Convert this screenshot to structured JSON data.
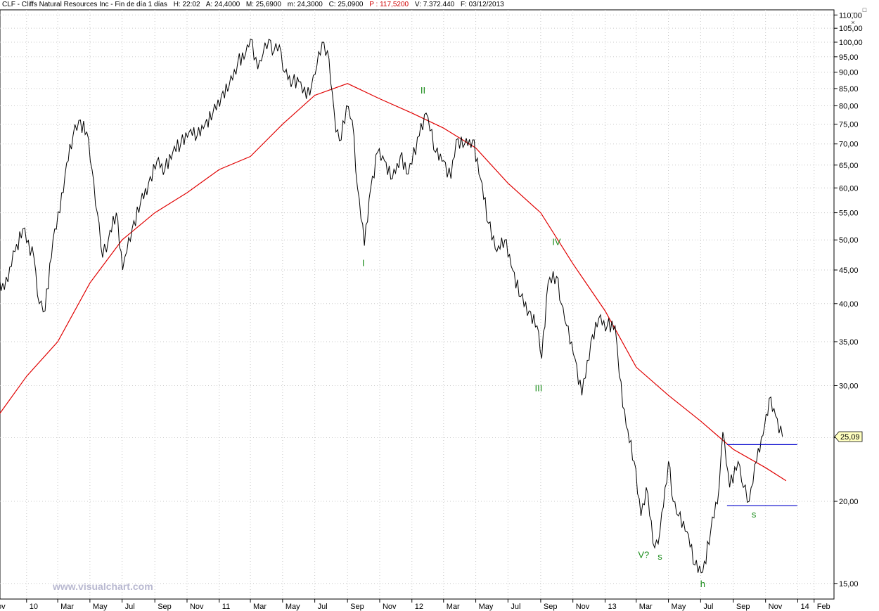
{
  "header": {
    "symbol_title": "CLF - Cliffs Natural Resources Inc - Fin de día 1 días",
    "hour": "H: 22:02",
    "open": "A: 24,4000",
    "high": "M: 25,6900",
    "low": "m: 24,3000",
    "close": "C: 25,0900",
    "p": "P : 117,5200",
    "volume": "V: 7.372.440",
    "date": "F: 03/12/2013"
  },
  "window_buttons": [
    "_",
    "□",
    "×"
  ],
  "watermark": "www.visualchart.com",
  "colors": {
    "price": "#000000",
    "ma": "#e00000",
    "wave_label": "#1a8c1a",
    "level_line": "#0000cc",
    "price_tag_bg": "#ffffc0"
  },
  "chart_data": {
    "type": "line",
    "y_scale": "log",
    "ylim": [
      14.2,
      112
    ],
    "yticks": [
      "15,00",
      "20,00",
      "25,00",
      "30,00",
      "35,00",
      "40,00",
      "45,00",
      "50,00",
      "55,00",
      "60,00",
      "65,00",
      "70,00",
      "75,00",
      "80,00",
      "85,00",
      "90,00",
      "95,00",
      "100,00",
      "105,00",
      "110,00"
    ],
    "ytick_values": [
      15,
      20,
      25,
      30,
      35,
      40,
      45,
      50,
      55,
      60,
      65,
      70,
      75,
      80,
      85,
      90,
      95,
      100,
      105,
      110
    ],
    "x_range": [
      "2009-11-01",
      "2014-02-28"
    ],
    "xticks": [
      {
        "date": "2009-11-01",
        "label": "ov"
      },
      {
        "date": "2010-01-01",
        "label": "10"
      },
      {
        "date": "2010-03-01",
        "label": "Mar"
      },
      {
        "date": "2010-05-01",
        "label": "May"
      },
      {
        "date": "2010-07-01",
        "label": "Jul"
      },
      {
        "date": "2010-09-01",
        "label": "Sep"
      },
      {
        "date": "2010-11-01",
        "label": "Nov"
      },
      {
        "date": "2011-01-01",
        "label": "11"
      },
      {
        "date": "2011-03-01",
        "label": "Mar"
      },
      {
        "date": "2011-05-01",
        "label": "May"
      },
      {
        "date": "2011-07-01",
        "label": "Jul"
      },
      {
        "date": "2011-09-01",
        "label": "Sep"
      },
      {
        "date": "2011-11-01",
        "label": "Nov"
      },
      {
        "date": "2012-01-01",
        "label": "12"
      },
      {
        "date": "2012-03-01",
        "label": "Mar"
      },
      {
        "date": "2012-05-01",
        "label": "May"
      },
      {
        "date": "2012-07-01",
        "label": "Jul"
      },
      {
        "date": "2012-09-01",
        "label": "Sep"
      },
      {
        "date": "2012-11-01",
        "label": "Nov"
      },
      {
        "date": "2013-01-01",
        "label": "13"
      },
      {
        "date": "2013-03-01",
        "label": "Mar"
      },
      {
        "date": "2013-05-01",
        "label": "May"
      },
      {
        "date": "2013-07-01",
        "label": "Jul"
      },
      {
        "date": "2013-09-01",
        "label": "Sep"
      },
      {
        "date": "2013-11-01",
        "label": "Nov"
      },
      {
        "date": "2014-01-01",
        "label": "14"
      },
      {
        "date": "2014-02-01",
        "label": "Feb"
      }
    ],
    "series": [
      {
        "key": "price",
        "points": [
          [
            "2009-11-01",
            44
          ],
          [
            "2009-11-20",
            42
          ],
          [
            "2009-12-10",
            48
          ],
          [
            "2009-12-25",
            52
          ],
          [
            "2010-01-15",
            47
          ],
          [
            "2010-01-25",
            40
          ],
          [
            "2010-02-05",
            39
          ],
          [
            "2010-02-20",
            50
          ],
          [
            "2010-03-05",
            55
          ],
          [
            "2010-03-15",
            63
          ],
          [
            "2010-03-30",
            72
          ],
          [
            "2010-04-10",
            76
          ],
          [
            "2010-04-25",
            73
          ],
          [
            "2010-05-05",
            64
          ],
          [
            "2010-05-15",
            55
          ],
          [
            "2010-05-25",
            47
          ],
          [
            "2010-06-05",
            50
          ],
          [
            "2010-06-20",
            55
          ],
          [
            "2010-07-02",
            45
          ],
          [
            "2010-07-10",
            48
          ],
          [
            "2010-07-20",
            52
          ],
          [
            "2010-08-05",
            57
          ],
          [
            "2010-08-20",
            61
          ],
          [
            "2010-09-05",
            66
          ],
          [
            "2010-09-20",
            64
          ],
          [
            "2010-10-05",
            68
          ],
          [
            "2010-10-20",
            70
          ],
          [
            "2010-11-05",
            73
          ],
          [
            "2010-11-20",
            72
          ],
          [
            "2010-12-05",
            75
          ],
          [
            "2010-12-20",
            78
          ],
          [
            "2011-01-05",
            83
          ],
          [
            "2011-01-20",
            86
          ],
          [
            "2011-02-05",
            93
          ],
          [
            "2011-02-20",
            96
          ],
          [
            "2011-03-01",
            101
          ],
          [
            "2011-03-15",
            91
          ],
          [
            "2011-03-25",
            96
          ],
          [
            "2011-04-05",
            101
          ],
          [
            "2011-04-15",
            97
          ],
          [
            "2011-04-25",
            99
          ],
          [
            "2011-05-05",
            90
          ],
          [
            "2011-05-20",
            87
          ],
          [
            "2011-06-01",
            87
          ],
          [
            "2011-06-15",
            82
          ],
          [
            "2011-06-25",
            86
          ],
          [
            "2011-07-05",
            92
          ],
          [
            "2011-07-15",
            100
          ],
          [
            "2011-07-25",
            97
          ],
          [
            "2011-08-03",
            84
          ],
          [
            "2011-08-10",
            73
          ],
          [
            "2011-08-20",
            71
          ],
          [
            "2011-08-30",
            80
          ],
          [
            "2011-09-10",
            76
          ],
          [
            "2011-09-20",
            60
          ],
          [
            "2011-10-03",
            49
          ],
          [
            "2011-10-15",
            60
          ],
          [
            "2011-10-28",
            68
          ],
          [
            "2011-11-10",
            66
          ],
          [
            "2011-11-25",
            62
          ],
          [
            "2011-12-10",
            67
          ],
          [
            "2011-12-25",
            63
          ],
          [
            "2012-01-15",
            72
          ],
          [
            "2012-01-28",
            78
          ],
          [
            "2012-02-15",
            68
          ],
          [
            "2012-03-01",
            66
          ],
          [
            "2012-03-15",
            62
          ],
          [
            "2012-03-25",
            71
          ],
          [
            "2012-04-10",
            70
          ],
          [
            "2012-04-25",
            71
          ],
          [
            "2012-05-10",
            62
          ],
          [
            "2012-05-25",
            53
          ],
          [
            "2012-06-10",
            48
          ],
          [
            "2012-06-25",
            50
          ],
          [
            "2012-07-10",
            45
          ],
          [
            "2012-07-25",
            41
          ],
          [
            "2012-08-10",
            39
          ],
          [
            "2012-08-25",
            37
          ],
          [
            "2012-09-03",
            33
          ],
          [
            "2012-09-15",
            43
          ],
          [
            "2012-10-01",
            44
          ],
          [
            "2012-10-10",
            40
          ],
          [
            "2012-10-20",
            37
          ],
          [
            "2012-11-05",
            33
          ],
          [
            "2012-11-18",
            29
          ],
          [
            "2012-12-05",
            35
          ],
          [
            "2012-12-20",
            38
          ],
          [
            "2013-01-05",
            37
          ],
          [
            "2013-01-20",
            37
          ],
          [
            "2013-01-28",
            31
          ],
          [
            "2013-02-10",
            26
          ],
          [
            "2013-02-25",
            23
          ],
          [
            "2013-03-10",
            19
          ],
          [
            "2013-03-20",
            21
          ],
          [
            "2013-04-05",
            17
          ],
          [
            "2013-04-15",
            18
          ],
          [
            "2013-05-01",
            23
          ],
          [
            "2013-05-10",
            20
          ],
          [
            "2013-05-20",
            19
          ],
          [
            "2013-06-05",
            18
          ],
          [
            "2013-06-20",
            16
          ],
          [
            "2013-07-05",
            15.6
          ],
          [
            "2013-07-20",
            18
          ],
          [
            "2013-08-05",
            21
          ],
          [
            "2013-08-12",
            25.5
          ],
          [
            "2013-08-25",
            21
          ],
          [
            "2013-09-10",
            23
          ],
          [
            "2013-09-20",
            21
          ],
          [
            "2013-10-01",
            20
          ],
          [
            "2013-10-15",
            23
          ],
          [
            "2013-10-30",
            26
          ],
          [
            "2013-11-08",
            28.7
          ],
          [
            "2013-11-20",
            27
          ],
          [
            "2013-12-03",
            25.09
          ]
        ]
      },
      {
        "key": "moving_average",
        "points": [
          [
            "2009-11-01",
            26.5
          ],
          [
            "2010-01-01",
            31
          ],
          [
            "2010-03-01",
            35
          ],
          [
            "2010-05-01",
            43
          ],
          [
            "2010-07-01",
            50
          ],
          [
            "2010-09-01",
            55
          ],
          [
            "2010-11-01",
            59
          ],
          [
            "2011-01-01",
            64
          ],
          [
            "2011-03-01",
            67
          ],
          [
            "2011-05-01",
            75
          ],
          [
            "2011-07-01",
            83
          ],
          [
            "2011-09-01",
            86.5
          ],
          [
            "2011-11-01",
            82
          ],
          [
            "2012-01-01",
            78
          ],
          [
            "2012-03-01",
            74
          ],
          [
            "2012-05-01",
            69
          ],
          [
            "2012-07-01",
            61
          ],
          [
            "2012-09-01",
            55
          ],
          [
            "2012-11-01",
            46
          ],
          [
            "2013-01-01",
            39
          ],
          [
            "2013-03-01",
            32
          ],
          [
            "2013-05-01",
            29
          ],
          [
            "2013-07-01",
            26.5
          ],
          [
            "2013-09-01",
            24
          ],
          [
            "2013-11-01",
            22.5
          ],
          [
            "2013-12-10",
            21.5
          ]
        ]
      }
    ],
    "last_price_label": "25,09",
    "last_price": 25.09,
    "wave_labels": [
      {
        "text": "I",
        "date": "2011-10-01",
        "value": 45.6
      },
      {
        "text": "II",
        "date": "2012-01-22",
        "value": 83.5
      },
      {
        "text": "III",
        "date": "2012-08-28",
        "value": 29.4
      },
      {
        "text": "IV",
        "date": "2012-10-01",
        "value": 49.1
      },
      {
        "text": "V?",
        "date": "2013-03-15",
        "value": 16.4
      },
      {
        "text": "s",
        "date": "2013-04-15",
        "value": 16.3
      },
      {
        "text": "h",
        "date": "2013-07-05",
        "value": 14.8
      },
      {
        "text": "s",
        "date": "2013-10-10",
        "value": 18.9
      }
    ],
    "level_lines": [
      {
        "value": 24.4,
        "from": "2013-08-20",
        "to": "2013-12-31"
      },
      {
        "value": 19.7,
        "from": "2013-08-20",
        "to": "2013-12-31"
      }
    ]
  }
}
